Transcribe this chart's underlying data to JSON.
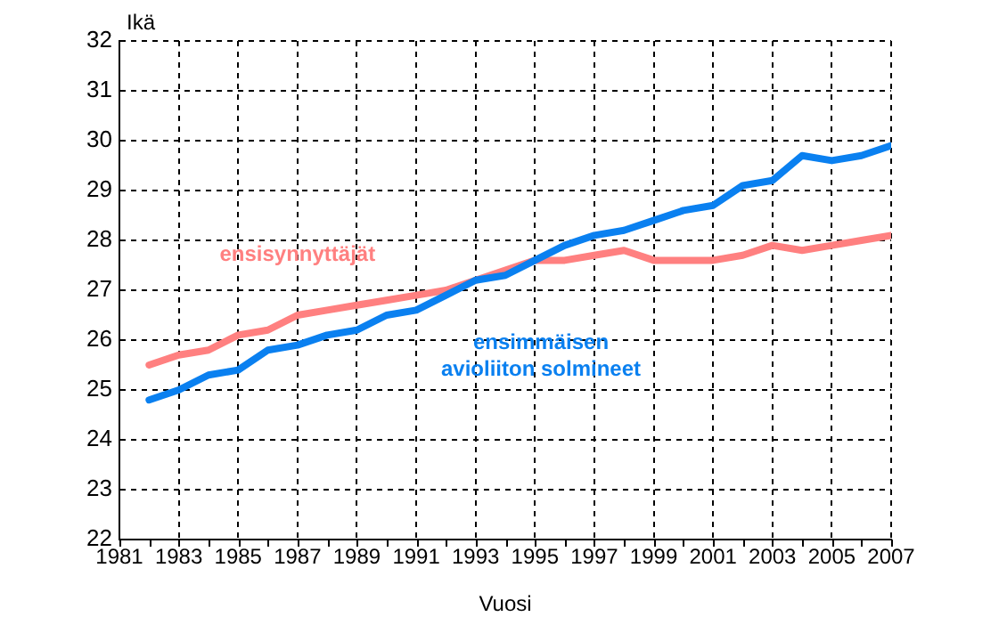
{
  "chart_data": {
    "type": "line",
    "xlabel": "Vuosi",
    "ylabel": "Ikä",
    "x": [
      1982,
      1983,
      1984,
      1985,
      1986,
      1987,
      1988,
      1989,
      1990,
      1991,
      1992,
      1993,
      1994,
      1995,
      1996,
      1997,
      1998,
      1999,
      2000,
      2001,
      2002,
      2003,
      2004,
      2005,
      2006,
      2007
    ],
    "series": [
      {
        "name": "ensisynnyttäjät",
        "color": "#ff8080",
        "values": [
          25.5,
          25.7,
          25.8,
          26.1,
          26.2,
          26.5,
          26.6,
          26.7,
          26.8,
          26.9,
          27.0,
          27.2,
          27.4,
          27.6,
          27.6,
          27.7,
          27.8,
          27.6,
          27.6,
          27.6,
          27.7,
          27.9,
          27.8,
          27.9,
          28.0,
          28.1
        ]
      },
      {
        "name": "ensimmäisen avioliiton solmineet",
        "color": "#0a80f0",
        "values": [
          24.8,
          25.0,
          25.3,
          25.4,
          25.8,
          25.9,
          26.1,
          26.2,
          26.5,
          26.6,
          26.9,
          27.2,
          27.3,
          27.6,
          27.9,
          28.1,
          28.2,
          28.4,
          28.6,
          28.7,
          29.1,
          29.2,
          29.7,
          29.6,
          29.7,
          29.9
        ]
      }
    ],
    "xlim": [
      1981,
      2007
    ],
    "xticks": [
      1981,
      {
        "value": 1982,
        "label": null
      },
      1983,
      {
        "value": 1984,
        "label": null
      },
      1985,
      {
        "value": 1986,
        "label": null
      },
      1987,
      {
        "value": 1988,
        "label": null
      },
      1989,
      {
        "value": 1990,
        "label": null
      },
      1991,
      {
        "value": 1992,
        "label": null
      },
      1993,
      {
        "value": 1994,
        "label": null
      },
      1995,
      {
        "value": 1996,
        "label": null
      },
      1997,
      {
        "value": 1998,
        "label": null
      },
      1999,
      {
        "value": 2000,
        "label": null
      },
      2001,
      {
        "value": 2002,
        "label": null
      },
      2003,
      {
        "value": 2004,
        "label": null
      },
      2005,
      {
        "value": 2006,
        "label": null
      },
      2007
    ],
    "ylim": [
      22,
      32
    ],
    "yticks": [
      22,
      23,
      24,
      25,
      26,
      27,
      28,
      29,
      30,
      31,
      32
    ],
    "grid": true,
    "legend": false,
    "marker": "none",
    "line_style": "solid"
  }
}
